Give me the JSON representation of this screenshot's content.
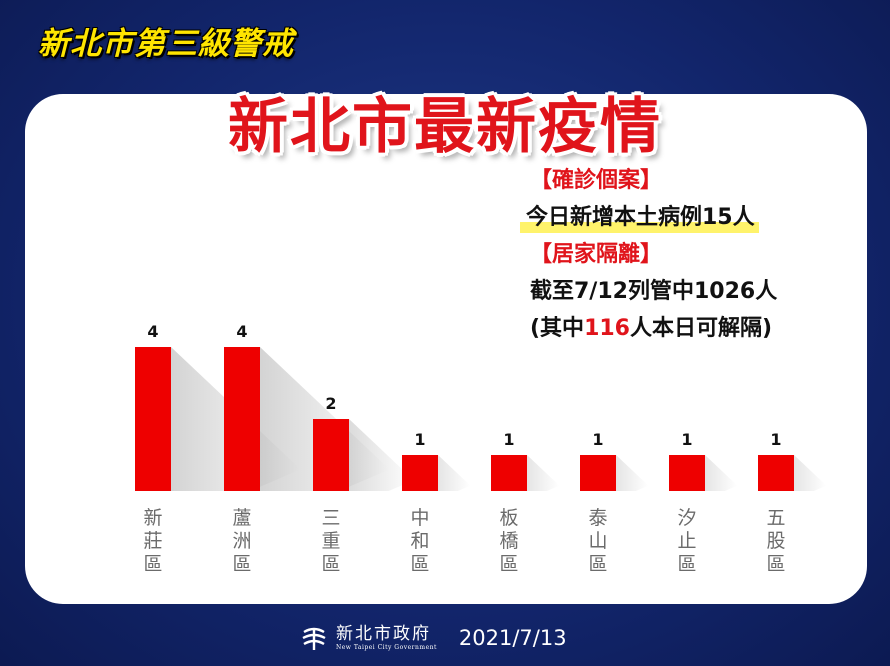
{
  "banner": "新北市第三級警戒",
  "title": "新北市最新疫情",
  "info": {
    "confirmed_header": "【確診個案】",
    "confirmed_text": "今日新增本土病例15人",
    "quarantine_header": "【居家隔離】",
    "quarantine_text": "截至7/12列管中1026人",
    "release_prefix": "(其中",
    "release_number": "116",
    "release_suffix": "人本日可解隔)"
  },
  "footer": {
    "logo_zh": "新北市政府",
    "logo_en": "New Taipei City Government",
    "date": "2021/7/13"
  },
  "colors": {
    "background": "#12256b",
    "banner": "#ffe500",
    "accent_red": "#e0141b",
    "bar": "#ee0000",
    "highlight": "#fff36b"
  },
  "chart_data": {
    "type": "bar",
    "categories": [
      "新莊區",
      "蘆洲區",
      "三重區",
      "中和區",
      "板橋區",
      "泰山區",
      "汐止區",
      "五股區"
    ],
    "values": [
      4,
      4,
      2,
      1,
      1,
      1,
      1,
      1
    ],
    "ylim": [
      0,
      4
    ],
    "data_labels": true,
    "grid": false,
    "legend": "none"
  }
}
